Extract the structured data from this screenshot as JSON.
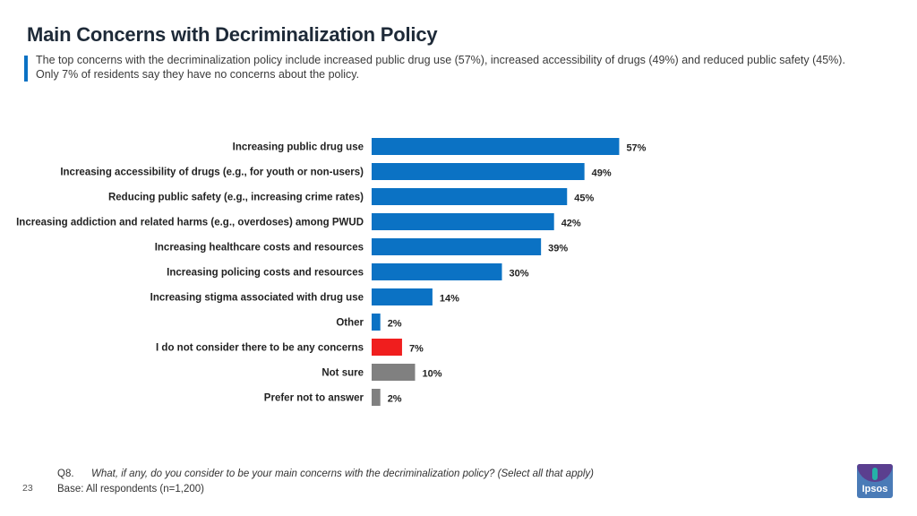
{
  "header": {
    "title": "Main Concerns with Decriminalization Policy",
    "subtitle": "The top concerns with the decriminalization policy include increased public drug use (57%), increased accessibility of drugs (49%) and reduced public safety (45%). Only 7% of residents say they have no concerns about the policy."
  },
  "chart_data": {
    "type": "bar",
    "orientation": "horizontal",
    "title": "",
    "xlabel": "",
    "ylabel": "",
    "xlim": [
      0,
      100
    ],
    "unit": "%",
    "categories": [
      "Increasing public drug use",
      "Increasing accessibility of drugs (e.g., for youth or non-users)",
      "Reducing public safety (e.g., increasing crime rates)",
      "Increasing addiction and related harms (e.g., overdoses) among PWUD",
      "Increasing healthcare costs and resources",
      "Increasing policing costs and resources",
      "Increasing stigma associated with drug use",
      "Other",
      "I do not consider there to be any concerns",
      "Not sure",
      "Prefer not to answer"
    ],
    "values": [
      57,
      49,
      45,
      42,
      39,
      30,
      14,
      2,
      7,
      10,
      2
    ],
    "value_labels": [
      "57%",
      "49%",
      "45%",
      "42%",
      "39%",
      "30%",
      "14%",
      "2%",
      "7%",
      "10%",
      "2%"
    ],
    "colors": [
      "#0b72c4",
      "#0b72c4",
      "#0b72c4",
      "#0b72c4",
      "#0b72c4",
      "#0b72c4",
      "#0b72c4",
      "#0b72c4",
      "#f01e1e",
      "#808080",
      "#808080"
    ]
  },
  "footer": {
    "question_number": "Q8.",
    "question_text": "What, if any, do you consider to be your main concerns with the decriminalization policy? (Select all that apply)",
    "base": "Base: All respondents (n=1,200)",
    "page_number": "23",
    "logo_text": "Ipsos"
  }
}
